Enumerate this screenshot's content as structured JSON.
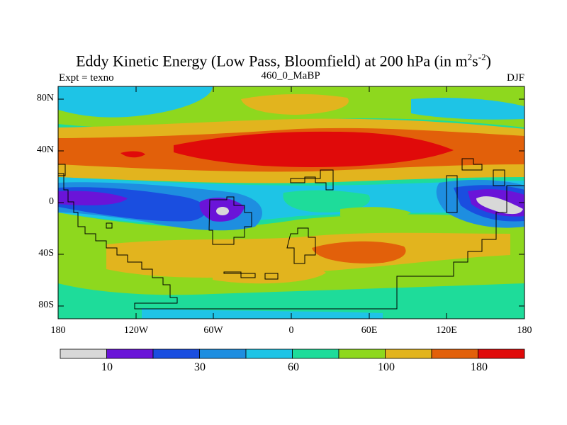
{
  "title": {
    "main": "Eddy Kinetic Energy (Low Pass, Bloomfield) at 200 hPa (in m",
    "sup1": "2",
    "mid": "s",
    "sup2": "-2",
    "end": ")"
  },
  "subtitle": {
    "left": "Expt = texno",
    "center": "460_0_MaBP",
    "right": "DJF"
  },
  "axes": {
    "y_ticks": [
      "80N",
      "40N",
      "0",
      "40S",
      "80S"
    ],
    "x_ticks": [
      "180",
      "120W",
      "60W",
      "0",
      "60E",
      "120E",
      "180"
    ]
  },
  "colorbar": {
    "colors": [
      "#d8d8d8",
      "#6a14d8",
      "#1a4ee0",
      "#1e8ee0",
      "#1ec4e6",
      "#1edc9a",
      "#8ed81e",
      "#e2b41e",
      "#e2600a",
      "#e00a0a"
    ],
    "labels": [
      "10",
      "30",
      "60",
      "100",
      "180"
    ]
  }
}
